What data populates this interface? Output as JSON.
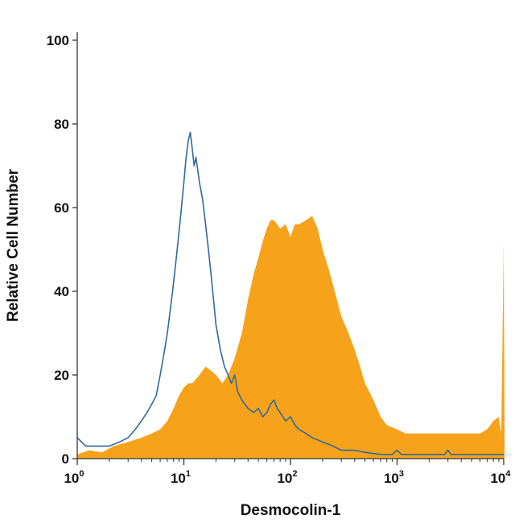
{
  "chart_data": {
    "type": "area",
    "title": "",
    "xlabel": "Desmocolin-1",
    "ylabel": "Relative Cell Number",
    "x_scale": "log",
    "xlim": [
      1,
      10000
    ],
    "ylim": [
      0,
      100
    ],
    "x_ticks": [
      {
        "value": 1,
        "base": "10",
        "exp": "0"
      },
      {
        "value": 10,
        "base": "10",
        "exp": "1"
      },
      {
        "value": 100,
        "base": "10",
        "exp": "2"
      },
      {
        "value": 1000,
        "base": "10",
        "exp": "3"
      },
      {
        "value": 10000,
        "base": "10",
        "exp": "4"
      }
    ],
    "y_ticks": [
      "0",
      "20",
      "40",
      "60",
      "80",
      "100"
    ],
    "grid": false,
    "legend": "none",
    "series": [
      {
        "style": "filled",
        "color": "#F7A21B",
        "points": [
          [
            1,
            1
          ],
          [
            1.3,
            2
          ],
          [
            1.7,
            1.5
          ],
          [
            2.2,
            3
          ],
          [
            3,
            4
          ],
          [
            4,
            5
          ],
          [
            5,
            6
          ],
          [
            6,
            7
          ],
          [
            7,
            9
          ],
          [
            8,
            12
          ],
          [
            9,
            15
          ],
          [
            10,
            17
          ],
          [
            11,
            18
          ],
          [
            12,
            18
          ],
          [
            14,
            20
          ],
          [
            16,
            22
          ],
          [
            18,
            21
          ],
          [
            20,
            20
          ],
          [
            23,
            18
          ],
          [
            26,
            20
          ],
          [
            30,
            24
          ],
          [
            35,
            30
          ],
          [
            40,
            38
          ],
          [
            45,
            44
          ],
          [
            50,
            48
          ],
          [
            55,
            52
          ],
          [
            60,
            55
          ],
          [
            65,
            57
          ],
          [
            70,
            57
          ],
          [
            80,
            55
          ],
          [
            90,
            56
          ],
          [
            100,
            53
          ],
          [
            110,
            56
          ],
          [
            120,
            56
          ],
          [
            140,
            57
          ],
          [
            160,
            58
          ],
          [
            180,
            55
          ],
          [
            200,
            50
          ],
          [
            230,
            45
          ],
          [
            260,
            40
          ],
          [
            300,
            34
          ],
          [
            350,
            30
          ],
          [
            400,
            26
          ],
          [
            450,
            22
          ],
          [
            500,
            18
          ],
          [
            600,
            14
          ],
          [
            700,
            10
          ],
          [
            800,
            8
          ],
          [
            1000,
            7
          ],
          [
            1200,
            6
          ],
          [
            1500,
            6
          ],
          [
            2000,
            6
          ],
          [
            2500,
            6
          ],
          [
            3000,
            6
          ],
          [
            4000,
            6
          ],
          [
            5000,
            6
          ],
          [
            6000,
            6
          ],
          [
            7000,
            7
          ],
          [
            8000,
            9
          ],
          [
            9000,
            10
          ],
          [
            9500,
            6
          ],
          [
            10000,
            52
          ],
          [
            10200,
            5
          ]
        ]
      },
      {
        "style": "outline",
        "color": "#2F6A9A",
        "points": [
          [
            1,
            5
          ],
          [
            1.2,
            3
          ],
          [
            1.5,
            3
          ],
          [
            2,
            3
          ],
          [
            2.5,
            4
          ],
          [
            3,
            5
          ],
          [
            3.5,
            7
          ],
          [
            4,
            9
          ],
          [
            4.5,
            11
          ],
          [
            5,
            13
          ],
          [
            5.5,
            15
          ],
          [
            6,
            20
          ],
          [
            6.5,
            25
          ],
          [
            7,
            30
          ],
          [
            7.5,
            36
          ],
          [
            8,
            42
          ],
          [
            8.5,
            48
          ],
          [
            9,
            54
          ],
          [
            9.5,
            60
          ],
          [
            10,
            66
          ],
          [
            10.5,
            72
          ],
          [
            11,
            76
          ],
          [
            11.5,
            78
          ],
          [
            12,
            74
          ],
          [
            12.5,
            70
          ],
          [
            13,
            72
          ],
          [
            14,
            66
          ],
          [
            15,
            62
          ],
          [
            16,
            56
          ],
          [
            17,
            50
          ],
          [
            18,
            44
          ],
          [
            19,
            38
          ],
          [
            20,
            32
          ],
          [
            22,
            26
          ],
          [
            24,
            22
          ],
          [
            26,
            20
          ],
          [
            28,
            18
          ],
          [
            30,
            20
          ],
          [
            32,
            16
          ],
          [
            35,
            14
          ],
          [
            40,
            12
          ],
          [
            45,
            11
          ],
          [
            50,
            12
          ],
          [
            55,
            10
          ],
          [
            60,
            11
          ],
          [
            65,
            13
          ],
          [
            70,
            14
          ],
          [
            75,
            12
          ],
          [
            80,
            11
          ],
          [
            90,
            9
          ],
          [
            100,
            10
          ],
          [
            110,
            8
          ],
          [
            120,
            7
          ],
          [
            140,
            6
          ],
          [
            160,
            5
          ],
          [
            200,
            4
          ],
          [
            250,
            3
          ],
          [
            300,
            2
          ],
          [
            400,
            2
          ],
          [
            500,
            1.5
          ],
          [
            700,
            1
          ],
          [
            900,
            1
          ],
          [
            1000,
            2
          ],
          [
            1100,
            1
          ],
          [
            2000,
            1
          ],
          [
            2800,
            1
          ],
          [
            3000,
            2
          ],
          [
            3200,
            1
          ],
          [
            5000,
            1
          ],
          [
            10000,
            1
          ]
        ]
      }
    ]
  }
}
